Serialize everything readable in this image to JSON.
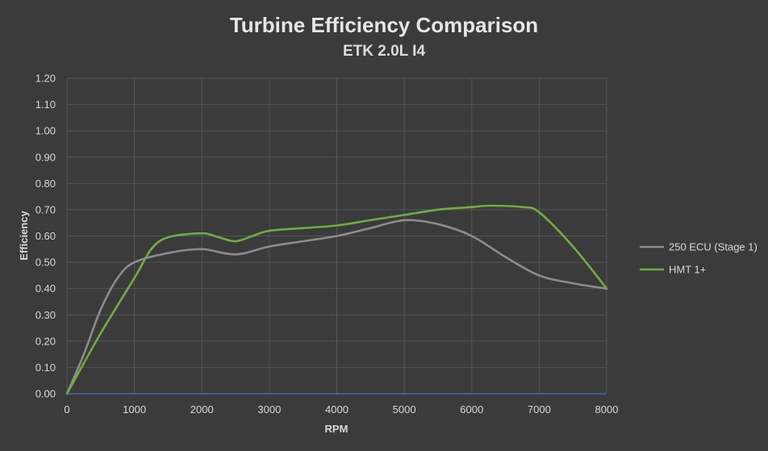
{
  "chart_data": {
    "type": "line",
    "title": "Turbine Efficiency Comparison",
    "subtitle": "ETK 2.0L I4",
    "xlabel": "RPM",
    "ylabel": "Efficiency",
    "xlim": [
      0,
      8000
    ],
    "ylim": [
      0,
      1.2
    ],
    "x_ticks": [
      "0",
      "1000",
      "2000",
      "3000",
      "4000",
      "5000",
      "6000",
      "7000",
      "8000"
    ],
    "y_ticks": [
      "0.00",
      "0.10",
      "0.20",
      "0.30",
      "0.40",
      "0.50",
      "0.60",
      "0.70",
      "0.80",
      "0.90",
      "1.00",
      "1.10",
      "1.20"
    ],
    "grid": true,
    "legend_position": "right",
    "series": [
      {
        "name": "250 ECU (Stage 1)",
        "color": "#8c8c8c",
        "points": [
          [
            0,
            0
          ],
          [
            250,
            0.15
          ],
          [
            500,
            0.32
          ],
          [
            750,
            0.44
          ],
          [
            1000,
            0.5
          ],
          [
            1500,
            0.535
          ],
          [
            2000,
            0.55
          ],
          [
            2500,
            0.53
          ],
          [
            3000,
            0.56
          ],
          [
            3500,
            0.58
          ],
          [
            4000,
            0.6
          ],
          [
            4500,
            0.63
          ],
          [
            5000,
            0.66
          ],
          [
            5500,
            0.645
          ],
          [
            6000,
            0.6
          ],
          [
            6500,
            0.52
          ],
          [
            7000,
            0.45
          ],
          [
            7500,
            0.42
          ],
          [
            8000,
            0.4
          ]
        ]
      },
      {
        "name": "HMT 1+",
        "color": "#6fac46",
        "points": [
          [
            0,
            0
          ],
          [
            500,
            0.23
          ],
          [
            1000,
            0.44
          ],
          [
            1250,
            0.55
          ],
          [
            1500,
            0.595
          ],
          [
            2000,
            0.61
          ],
          [
            2250,
            0.595
          ],
          [
            2500,
            0.58
          ],
          [
            2750,
            0.6
          ],
          [
            3000,
            0.62
          ],
          [
            3500,
            0.63
          ],
          [
            4000,
            0.64
          ],
          [
            4500,
            0.66
          ],
          [
            5000,
            0.68
          ],
          [
            5500,
            0.7
          ],
          [
            6000,
            0.71
          ],
          [
            6250,
            0.715
          ],
          [
            6750,
            0.71
          ],
          [
            7000,
            0.69
          ],
          [
            7500,
            0.56
          ],
          [
            8000,
            0.4
          ]
        ]
      }
    ],
    "axis_line_color": "#4472c4"
  }
}
